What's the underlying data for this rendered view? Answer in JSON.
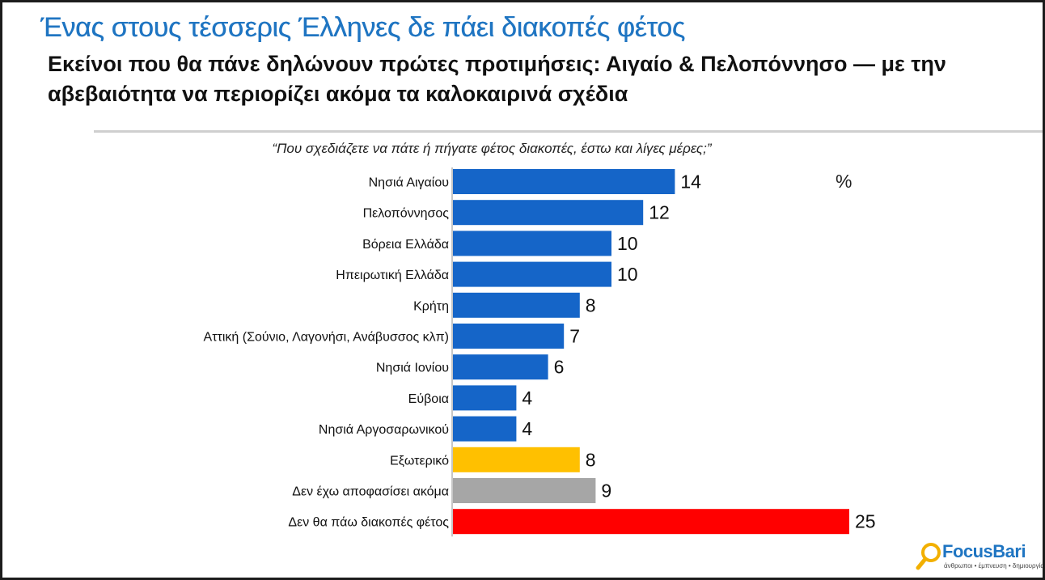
{
  "title": "Ένας στους τέσσερις Έλληνες δε πάει διακοπές φέτος",
  "subtitle": "Εκείνοι που θα πάνε δηλώνουν πρώτες προτιμήσεις: Αιγαίο & Πελοπόννησο — με την αβεβαιότητα να περιορίζει ακόμα τα καλοκαιρινά σχέδια",
  "brand": {
    "name": "FocusBari",
    "tagline": "άνθρωποι • έμπνευση • δημιουργία"
  },
  "colors": {
    "title": "#1f75c2",
    "bar_default": "#1565c8",
    "bar_abroad": "#ffc000",
    "bar_undecided": "#a6a6a6",
    "bar_not_going": "#ff0000"
  },
  "chart_data": {
    "type": "bar",
    "orientation": "horizontal",
    "title": "“Που σχεδιάζετε να πάτε ή πήγατε φέτος διακοπές, έστω και λίγες μέρες;”",
    "unit": "%",
    "xlim": [
      0,
      25
    ],
    "grid": false,
    "categories": [
      "Νησιά Αιγαίου",
      "Πελοπόννησος",
      "Βόρεια Ελλάδα",
      "Ηπειρωτική Ελλάδα",
      "Κρήτη",
      "Αττική (Σούνιο, Λαγονήσι, Ανάβυσσος κλπ)",
      "Νησιά Ιονίου",
      "Εύβοια",
      "Νησιά Αργοσαρωνικού",
      "Εξωτερικό",
      "Δεν έχω αποφασίσει ακόμα",
      "Δεν θα πάω διακοπές φέτος"
    ],
    "values": [
      14,
      12,
      10,
      10,
      8,
      7,
      6,
      4,
      4,
      8,
      9,
      25
    ],
    "bar_colors": [
      "#1565c8",
      "#1565c8",
      "#1565c8",
      "#1565c8",
      "#1565c8",
      "#1565c8",
      "#1565c8",
      "#1565c8",
      "#1565c8",
      "#ffc000",
      "#a6a6a6",
      "#ff0000"
    ]
  }
}
